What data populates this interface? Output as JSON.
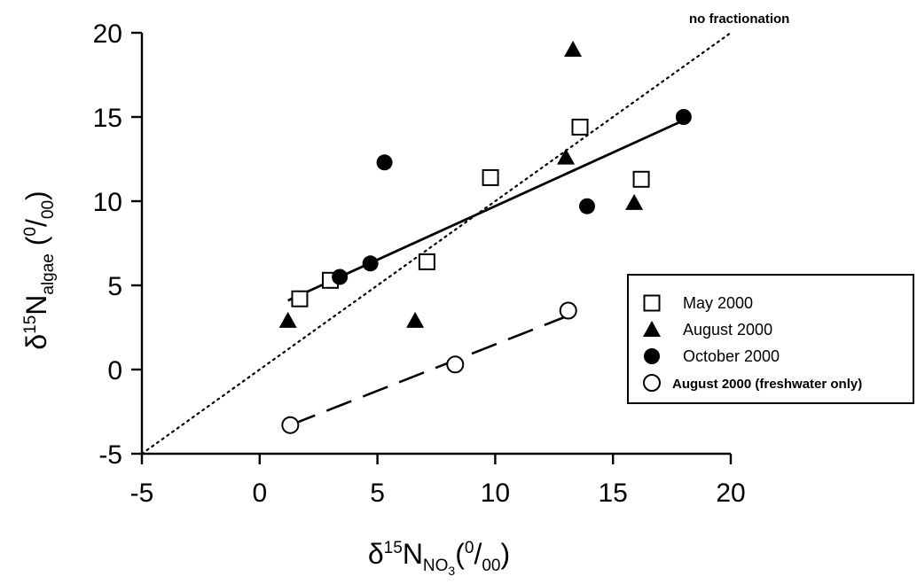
{
  "chart_data": {
    "type": "scatter",
    "xlim": [
      -5,
      20
    ],
    "ylim": [
      -5,
      20
    ],
    "x_ticks": [
      -5,
      0,
      5,
      10,
      15,
      20
    ],
    "y_ticks": [
      -5,
      0,
      5,
      10,
      15,
      20
    ],
    "x_tick_labels": [
      "-5",
      "0",
      "5",
      "10",
      "15",
      "20"
    ],
    "y_tick_labels": [
      "-5",
      "0",
      "5",
      "10",
      "15",
      "20"
    ],
    "xlabel": {
      "delta": "δ",
      "sup": "15",
      "main": "N",
      "sub": "NO",
      "subsub": "3",
      "unit_open": "(",
      "unit_sup": "0",
      "unit_slash": "/",
      "unit_sub": "00",
      "unit_close": ")"
    },
    "ylabel": {
      "delta": "δ",
      "sup": "15",
      "main": "N",
      "sub": "algae",
      "unit_open": " (",
      "unit_sup": "0",
      "unit_slash": "/",
      "unit_sub": "00",
      "unit_close": ")"
    },
    "grid": false,
    "legend_position": "right",
    "annotation": "no fractionation",
    "series": [
      {
        "name": "May 2000",
        "marker": "open-square",
        "x": [
          1.7,
          3.0,
          7.1,
          9.8,
          13.6,
          16.2
        ],
        "y": [
          4.2,
          5.3,
          6.4,
          11.4,
          14.4,
          11.3
        ]
      },
      {
        "name": "August 2000",
        "marker": "filled-triangle",
        "x": [
          1.2,
          6.6,
          13.0,
          13.3,
          15.9
        ],
        "y": [
          2.9,
          2.9,
          12.6,
          19.0,
          9.9
        ]
      },
      {
        "name": "October 2000",
        "marker": "filled-circle",
        "x": [
          3.4,
          4.7,
          5.3,
          13.9,
          18.0
        ],
        "y": [
          5.5,
          6.3,
          12.3,
          9.7,
          15.0
        ]
      },
      {
        "name": "August 2000 (freshwater only)",
        "marker": "open-circle",
        "x": [
          1.3,
          8.3,
          13.1
        ],
        "y": [
          -3.3,
          0.3,
          3.5
        ]
      }
    ],
    "lines": [
      {
        "kind": "one-to-one",
        "style": "dotted",
        "x": [
          -5,
          20
        ],
        "y": [
          -5,
          20
        ]
      },
      {
        "kind": "regression",
        "style": "solid",
        "x": [
          1.2,
          18.0
        ],
        "y": [
          4.1,
          14.8
        ]
      },
      {
        "kind": "regression",
        "style": "dashed",
        "x": [
          1.3,
          13.1
        ],
        "y": [
          -3.3,
          3.2
        ]
      }
    ]
  }
}
